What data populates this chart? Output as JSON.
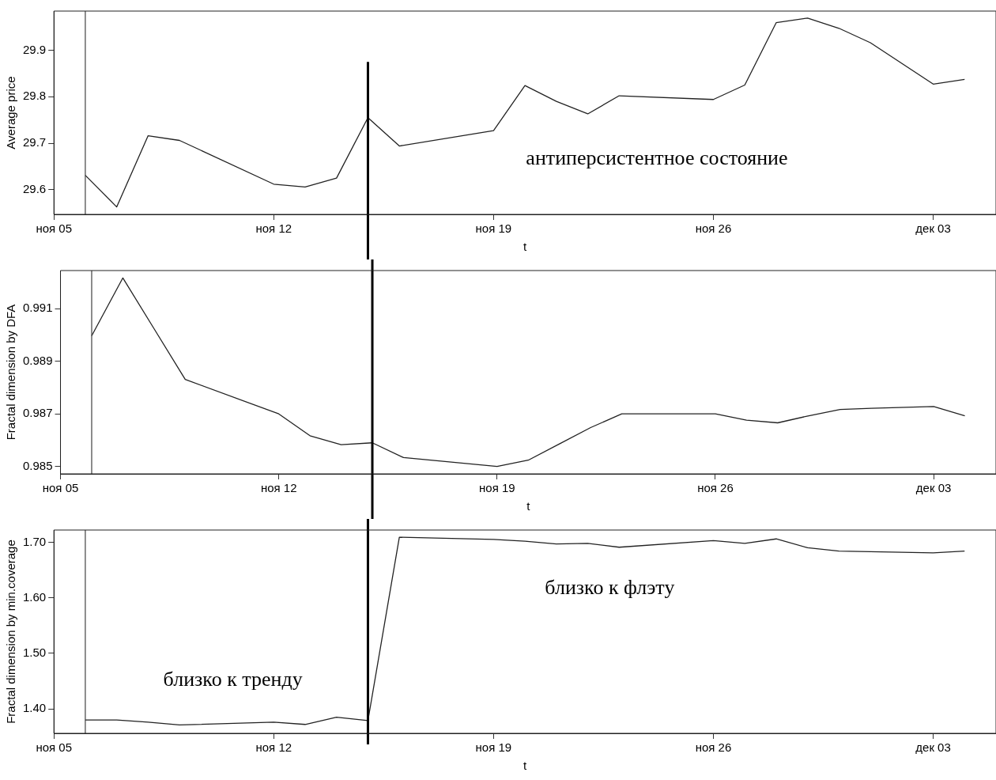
{
  "chart_data": [
    {
      "type": "line",
      "xlabel": "t",
      "ylabel": "Average price",
      "x": [
        "--11-06",
        "--11-07",
        "--11-08",
        "--11-09",
        "--11-12",
        "--11-13",
        "--11-14",
        "--11-15",
        "--11-16",
        "--11-19",
        "--11-20",
        "--11-21",
        "--11-22",
        "--11-23",
        "--11-26",
        "--11-27",
        "--11-28",
        "--11-29",
        "--11-30",
        "--12-01",
        "--12-03",
        "--12-04"
      ],
      "series": [
        {
          "color": "#222222",
          "values": [
            29.631,
            29.563,
            29.716,
            29.706,
            29.612,
            29.606,
            29.625,
            29.755,
            29.694,
            29.727,
            29.824,
            29.79,
            29.763,
            29.802,
            29.794,
            29.825,
            29.959,
            29.969,
            29.947,
            29.916,
            29.827,
            29.837
          ]
        }
      ],
      "xlim": [
        "--11-05",
        "--12-05"
      ],
      "xticks": [
        {
          "value": "--11-05",
          "label": "ноя 05"
        },
        {
          "value": "--11-12",
          "label": "ноя 12"
        },
        {
          "value": "--11-19",
          "label": "ноя 19"
        },
        {
          "value": "--11-26",
          "label": "ноя 26"
        },
        {
          "value": "--12-03",
          "label": "дек 03"
        }
      ],
      "ylim": [
        29.547,
        29.984
      ],
      "yticks": [
        29.6,
        29.7,
        29.8,
        29.9
      ],
      "grid": false,
      "marker": "none",
      "line_style": "solid",
      "ref_lines": [
        {
          "axis": "x",
          "value": "--11-06",
          "color": "#404040"
        },
        {
          "axis": "x",
          "value": "--11-15",
          "color": "#000000"
        }
      ],
      "annotations": [
        "антиперсистентное состояние"
      ]
    },
    {
      "type": "line",
      "xlabel": "t",
      "ylabel": "Fractal dimension by DFA",
      "x": [
        "--11-06",
        "--11-07",
        "--11-08",
        "--11-09",
        "--11-12",
        "--11-13",
        "--11-14",
        "--11-15",
        "--11-16",
        "--11-19",
        "--11-20",
        "--11-21",
        "--11-22",
        "--11-23",
        "--11-26",
        "--11-27",
        "--11-28",
        "--11-29",
        "--11-30",
        "--12-01",
        "--12-03",
        "--12-04"
      ],
      "series": [
        {
          "color": "#222222",
          "values": [
            0.98997,
            0.99217,
            0.99024,
            0.98831,
            0.987,
            0.98617,
            0.98583,
            0.9859,
            0.98534,
            0.985,
            0.98524,
            0.98586,
            0.98648,
            0.987,
            0.987,
            0.98676,
            0.98666,
            0.98693,
            0.98717,
            0.98721,
            0.98728,
            0.98693
          ]
        }
      ],
      "xlim": [
        "--11-05",
        "--12-05"
      ],
      "xticks": [
        {
          "value": "--11-05",
          "label": "ноя 05"
        },
        {
          "value": "--11-12",
          "label": "ноя 12"
        },
        {
          "value": "--11-19",
          "label": "ноя 19"
        },
        {
          "value": "--11-26",
          "label": "ноя 26"
        },
        {
          "value": "--12-03",
          "label": "дек 03"
        }
      ],
      "ylim": [
        0.98472,
        0.99245
      ],
      "yticks": [
        0.985,
        0.987,
        0.989,
        0.991
      ],
      "grid": false,
      "marker": "none",
      "line_style": "solid",
      "ref_lines": [
        {
          "axis": "x",
          "value": "--11-06",
          "color": "#404040"
        },
        {
          "axis": "x",
          "value": "--11-15",
          "color": "#000000"
        }
      ]
    },
    {
      "type": "line",
      "xlabel": "t",
      "ylabel": "Fractal dimension by min.coverage",
      "x": [
        "--11-06",
        "--11-07",
        "--11-08",
        "--11-09",
        "--11-12",
        "--11-13",
        "--11-14",
        "--11-15",
        "--11-16",
        "--11-19",
        "--11-20",
        "--11-21",
        "--11-22",
        "--11-23",
        "--11-26",
        "--11-27",
        "--11-28",
        "--11-29",
        "--11-30",
        "--12-01",
        "--12-03",
        "--12-04"
      ],
      "series": [
        {
          "color": "#222222",
          "values": [
            1.38,
            1.38,
            1.376,
            1.371,
            1.376,
            1.372,
            1.385,
            1.379,
            1.709,
            1.705,
            1.702,
            1.697,
            1.698,
            1.691,
            1.703,
            1.698,
            1.706,
            1.69,
            1.684,
            1.683,
            1.681,
            1.684
          ]
        }
      ],
      "xlim": [
        "--11-05",
        "--12-05"
      ],
      "xticks": [
        {
          "value": "--11-05",
          "label": "ноя 05"
        },
        {
          "value": "--11-12",
          "label": "ноя 12"
        },
        {
          "value": "--11-19",
          "label": "ноя 19"
        },
        {
          "value": "--11-26",
          "label": "ноя 26"
        },
        {
          "value": "--12-03",
          "label": "дек 03"
        }
      ],
      "ylim": [
        1.356,
        1.722
      ],
      "yticks": [
        {
          "value": 1.4,
          "label": "1.40"
        },
        {
          "value": 1.5,
          "label": "1.50"
        },
        {
          "value": 1.6,
          "label": "1.60"
        },
        {
          "value": 1.7,
          "label": "1.70"
        }
      ],
      "grid": false,
      "marker": "none",
      "line_style": "solid",
      "ref_lines": [
        {
          "axis": "x",
          "value": "--11-06",
          "color": "#404040"
        },
        {
          "axis": "x",
          "value": "--11-15",
          "color": "#000000"
        }
      ],
      "annotations": [
        "близко к тренду",
        "близко к флэту"
      ]
    }
  ]
}
